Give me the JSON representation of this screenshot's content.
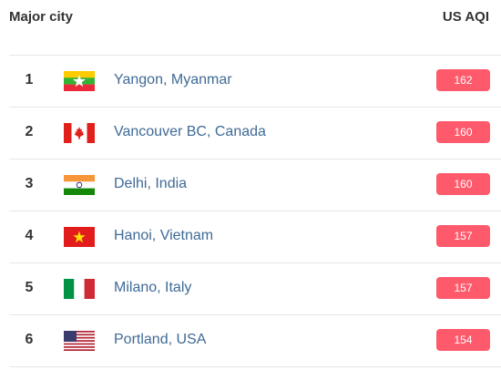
{
  "header": {
    "city": "Major city",
    "aqi": "US AQI"
  },
  "rows": [
    {
      "rank": 1,
      "city": "Yangon, Myanmar",
      "aqi": 162
    },
    {
      "rank": 2,
      "city": "Vancouver BC, Canada",
      "aqi": 160
    },
    {
      "rank": 3,
      "city": "Delhi, India",
      "aqi": 160
    },
    {
      "rank": 4,
      "city": "Hanoi, Vietnam",
      "aqi": 157
    },
    {
      "rank": 5,
      "city": "Milano, Italy",
      "aqi": 157
    },
    {
      "rank": 6,
      "city": "Portland, USA",
      "aqi": 154
    }
  ]
}
